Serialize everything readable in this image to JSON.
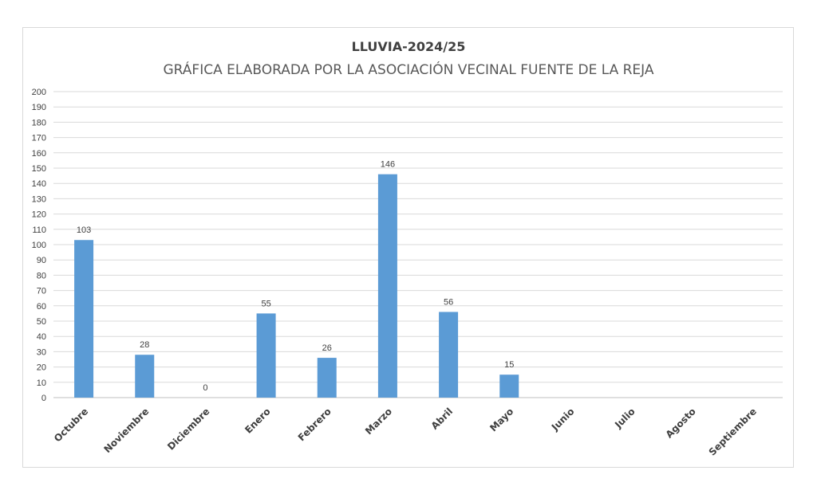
{
  "chart_data": {
    "type": "bar",
    "title": "LLUVIA-2024/25",
    "subtitle": "GRÁFICA ELABORADA POR LA ASOCIACIÓN VECINAL FUENTE DE LA REJA",
    "categories": [
      "Octubre",
      "Noviembre",
      "Diciembre",
      "Enero",
      "Febrero",
      "Marzo",
      "Abril",
      "Mayo",
      "Junio",
      "Julio",
      "Agosto",
      "Septiembre"
    ],
    "values": [
      103,
      28,
      0,
      55,
      26,
      146,
      56,
      15,
      null,
      null,
      null,
      null
    ],
    "data_labels": [
      "103",
      "28",
      "0",
      "55",
      "26",
      "146",
      "56",
      "15",
      "",
      "",
      "",
      ""
    ],
    "ylim": [
      0,
      200
    ],
    "yticks": [
      0,
      10,
      20,
      30,
      40,
      50,
      60,
      70,
      80,
      90,
      100,
      110,
      120,
      130,
      140,
      150,
      160,
      170,
      180,
      190,
      200
    ],
    "xlabel": "",
    "ylabel": "",
    "grid": true,
    "legend": "none",
    "bar_color": "#5b9bd5"
  }
}
